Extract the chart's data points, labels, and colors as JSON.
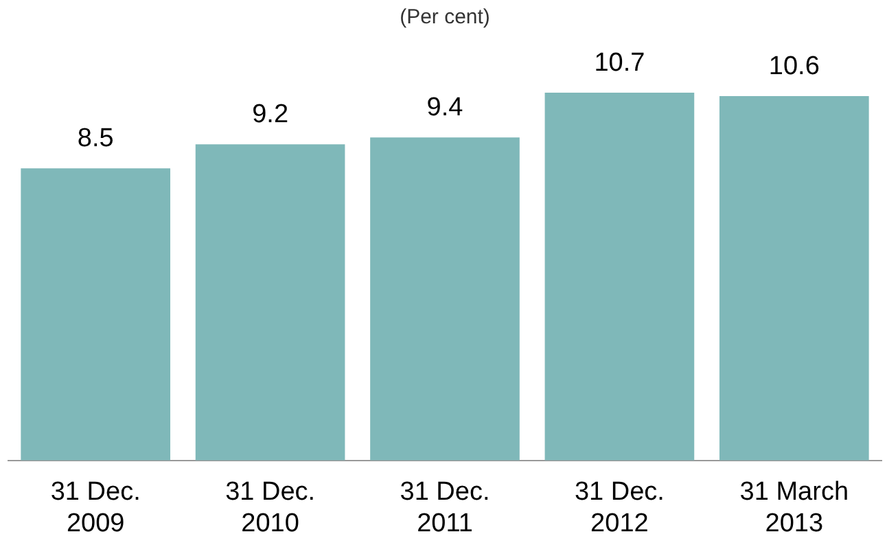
{
  "chart_data": {
    "type": "bar",
    "subtitle": "(Per cent)",
    "categories": [
      "31 Dec. 2009",
      "31 Dec. 2010",
      "31 Dec. 2011",
      "31 Dec. 2012",
      "31 March 2013"
    ],
    "values": [
      8.5,
      9.2,
      9.4,
      10.7,
      10.6
    ],
    "color": "#7fb8b9",
    "data_labels": true,
    "grid": false,
    "legend": false
  }
}
